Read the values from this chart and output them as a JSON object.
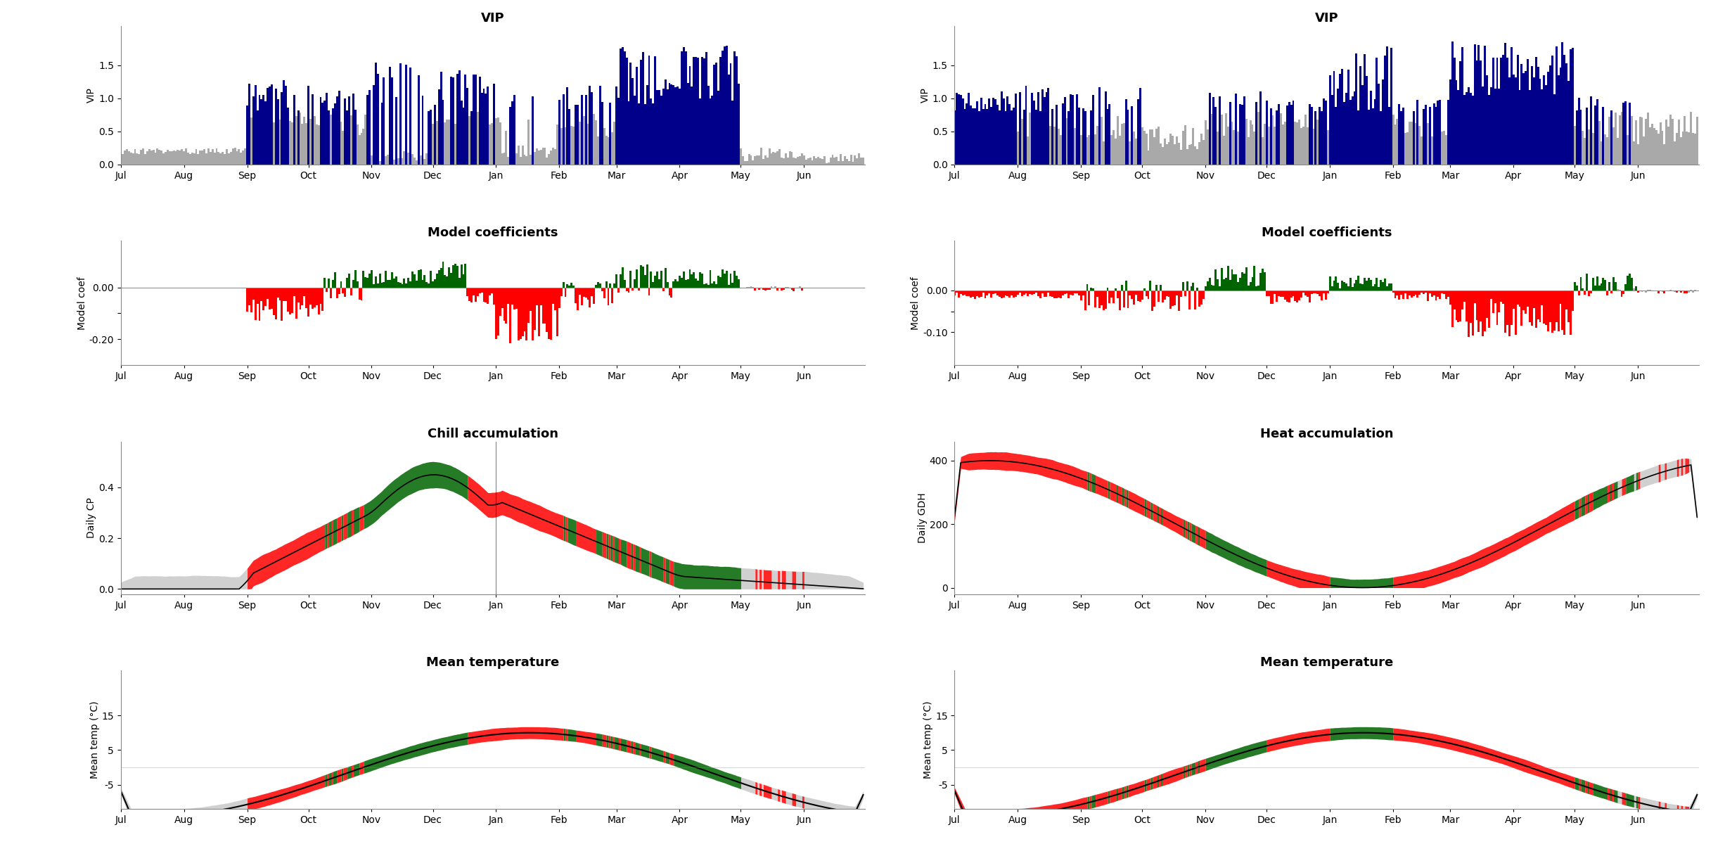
{
  "title_vip_left": "VIP",
  "title_vip_right": "VIP",
  "title_coef_left": "Model coefficients",
  "title_coef_right": "Model coefficients",
  "title_chill": "Chill accumulation",
  "title_heat": "Heat accumulation",
  "title_temp_left": "Mean temperature",
  "title_temp_right": "Mean temperature",
  "ylabel_vip": "VIP",
  "ylabel_coef": "Model coef",
  "ylabel_chill": "Daily CP",
  "ylabel_heat": "Daily GDH",
  "ylabel_temp": "Mean temp (°C)",
  "months": [
    "Jul",
    "Aug",
    "Sep",
    "Oct",
    "Nov",
    "Dec",
    "Jan",
    "Feb",
    "Mar",
    "Apr",
    "May",
    "Jun"
  ],
  "month_lengths": [
    31,
    31,
    30,
    31,
    30,
    31,
    31,
    28,
    31,
    30,
    31,
    30
  ],
  "colors": {
    "blue": "#00008B",
    "gray": "#A9A9A9",
    "green": "#006400",
    "red": "#FF0000",
    "lightgray": "#C8C8C8"
  }
}
